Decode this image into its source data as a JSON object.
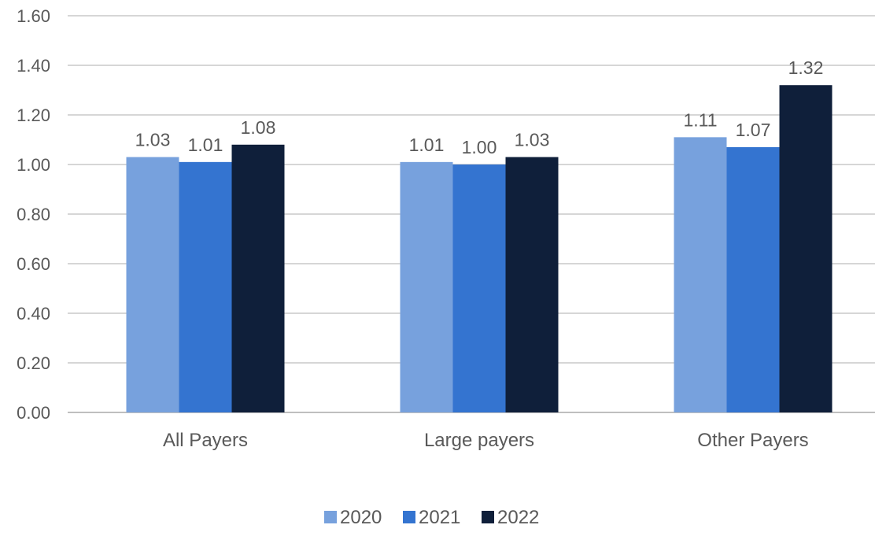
{
  "chart_data": {
    "type": "bar",
    "title": "",
    "xlabel": "",
    "ylabel": "",
    "categories": [
      "All Payers",
      "Large payers",
      "Other Payers"
    ],
    "series": [
      {
        "name": "2020",
        "color": "#77a1dd",
        "values": [
          1.03,
          1.01,
          1.11
        ]
      },
      {
        "name": "2021",
        "color": "#3474d0",
        "values": [
          1.01,
          1.0,
          1.07
        ]
      },
      {
        "name": "2022",
        "color": "#0f1f3a",
        "values": [
          1.08,
          1.03,
          1.32
        ]
      }
    ],
    "value_labels": [
      [
        "1.03",
        "1.01",
        "1.11"
      ],
      [
        "1.01",
        "1.00",
        "1.07"
      ],
      [
        "1.08",
        "1.03",
        "1.32"
      ]
    ],
    "ylim": [
      0,
      1.6
    ],
    "y_ticks": [
      "0.00",
      "0.20",
      "0.40",
      "0.60",
      "0.80",
      "1.00",
      "1.20",
      "1.40",
      "1.60"
    ],
    "grid": true,
    "legend_position": "bottom-center"
  }
}
